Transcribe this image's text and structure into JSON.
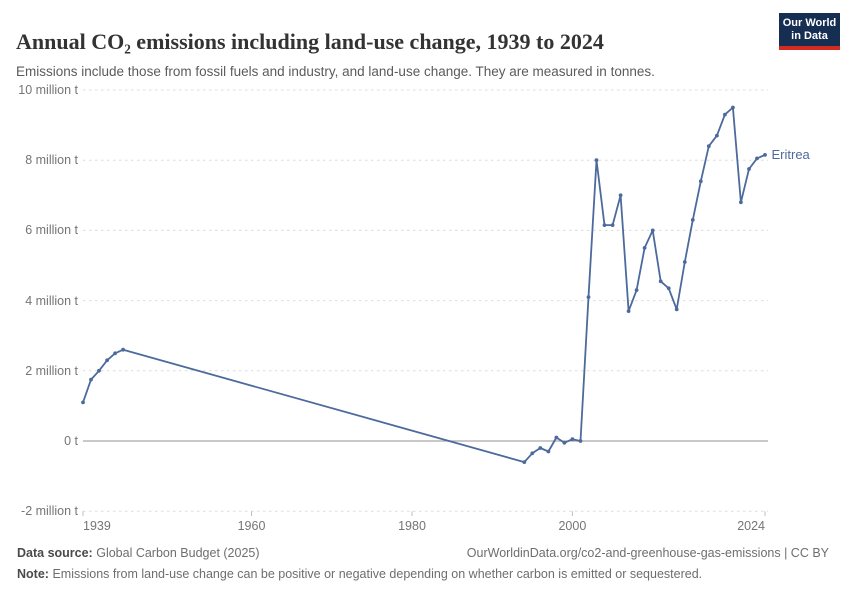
{
  "header": {
    "title": "Annual CO₂ emissions including land-use change, 1939 to 2024",
    "subtitle": "Emissions include those from fossil fuels and industry, and land-use change. They are measured in tonnes.",
    "logo": {
      "line1": "Our World",
      "line2": "in Data"
    }
  },
  "chart_data": {
    "type": "line",
    "title": "Annual CO₂ emissions including land-use change, 1939 to 2024",
    "unit": "million tonnes CO₂",
    "entity_label": "Eritrea",
    "xlim": [
      1939,
      2024
    ],
    "ylim": [
      -2,
      10
    ],
    "grid": "horizontal dashed, solid line at zero",
    "legend_position": "label at end of line",
    "y_ticks": [
      {
        "v": 10,
        "label": "10 million t"
      },
      {
        "v": 8,
        "label": "8 million t"
      },
      {
        "v": 6,
        "label": "6 million t"
      },
      {
        "v": 4,
        "label": "4 million t"
      },
      {
        "v": 2,
        "label": "2 million t"
      },
      {
        "v": 0,
        "label": "0 t"
      },
      {
        "v": -2,
        "label": "-2 million t"
      }
    ],
    "x_ticks": [
      {
        "v": 1939,
        "label": "1939",
        "align": "left"
      },
      {
        "v": 1960,
        "label": "1960",
        "align": "center"
      },
      {
        "v": 1980,
        "label": "1980",
        "align": "center"
      },
      {
        "v": 2000,
        "label": "2000",
        "align": "center"
      },
      {
        "v": 2024,
        "label": "2024",
        "align": "right"
      }
    ],
    "series": [
      {
        "name": "Eritrea",
        "color": "#4c6a9c",
        "points": [
          [
            1939,
            1.1
          ],
          [
            1940,
            1.75
          ],
          [
            1941,
            2.0
          ],
          [
            1942,
            2.3
          ],
          [
            1943,
            2.5
          ],
          [
            1944,
            2.6
          ],
          [
            1994,
            -0.6
          ],
          [
            1995,
            -0.35
          ],
          [
            1996,
            -0.2
          ],
          [
            1997,
            -0.3
          ],
          [
            1998,
            0.1
          ],
          [
            1999,
            -0.05
          ],
          [
            2000,
            0.05
          ],
          [
            2001,
            0.0
          ],
          [
            2002,
            4.1
          ],
          [
            2003,
            8.0
          ],
          [
            2004,
            6.15
          ],
          [
            2005,
            6.15
          ],
          [
            2006,
            7.0
          ],
          [
            2007,
            3.7
          ],
          [
            2008,
            4.3
          ],
          [
            2009,
            5.5
          ],
          [
            2010,
            6.0
          ],
          [
            2011,
            4.55
          ],
          [
            2012,
            4.35
          ],
          [
            2013,
            3.75
          ],
          [
            2014,
            5.1
          ],
          [
            2015,
            6.3
          ],
          [
            2016,
            7.4
          ],
          [
            2017,
            8.4
          ],
          [
            2018,
            8.7
          ],
          [
            2019,
            9.3
          ],
          [
            2020,
            9.5
          ],
          [
            2021,
            6.8
          ],
          [
            2022,
            7.75
          ],
          [
            2023,
            8.05
          ],
          [
            2024,
            8.15
          ]
        ]
      }
    ]
  },
  "footer": {
    "data_source_label": "Data source:",
    "data_source_value": "Global Carbon Budget (2025)",
    "link": "OurWorldinData.org/co2-and-greenhouse-gas-emissions | CC BY",
    "note_label": "Note:",
    "note_value": "Emissions from land-use change can be positive or negative depending on whether carbon is emitted or sequestered."
  },
  "colors": {
    "series_line": "#4c6a9c",
    "logo_background": "#152e52",
    "logo_accent_bar": "#d42b21",
    "gridline": "#dcdcdc",
    "zero_line": "#a9a9a9",
    "axis_text": "#757575"
  }
}
